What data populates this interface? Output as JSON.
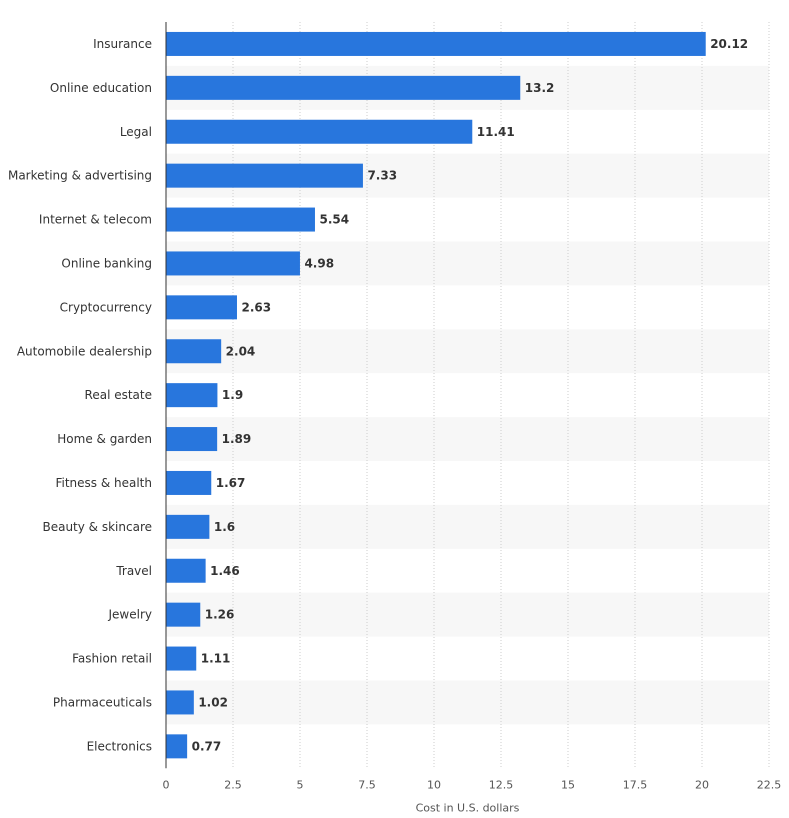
{
  "chart_data": {
    "type": "bar",
    "orientation": "horizontal",
    "categories": [
      "Insurance",
      "Online education",
      "Legal",
      "Marketing & advertising",
      "Internet & telecom",
      "Online banking",
      "Cryptocurrency",
      "Automobile dealership",
      "Real estate",
      "Home & garden",
      "Fitness & health",
      "Beauty & skincare",
      "Travel",
      "Jewelry",
      "Fashion retail",
      "Pharmaceuticals",
      "Electronics"
    ],
    "values": [
      20.12,
      13.2,
      11.41,
      7.33,
      5.54,
      4.98,
      2.63,
      2.04,
      1.9,
      1.89,
      1.67,
      1.6,
      1.46,
      1.26,
      1.11,
      1.02,
      0.77
    ],
    "value_labels": [
      "20.12",
      "13.2",
      "11.41",
      "7.33",
      "5.54",
      "4.98",
      "2.63",
      "2.04",
      "1.9",
      "1.89",
      "1.67",
      "1.6",
      "1.46",
      "1.26",
      "1.11",
      "1.02",
      "0.77"
    ],
    "xlabel": "Cost in U.S. dollars",
    "ylabel": "",
    "title": "",
    "xlim": [
      0,
      22.5
    ],
    "x_ticks": [
      0,
      2.5,
      5,
      7.5,
      10,
      12.5,
      15,
      17.5,
      20,
      22.5
    ],
    "x_tick_labels": [
      "0",
      "2.5",
      "5",
      "7.5",
      "10",
      "12.5",
      "15",
      "17.5",
      "20",
      "22.5"
    ],
    "grid": "vertical dotted",
    "alternating_row_bands": true,
    "colors": {
      "bar": "#2876dd",
      "band": "#f7f7f7",
      "grid": "#cccccc",
      "axis": "#333333",
      "text": "#333333"
    }
  }
}
